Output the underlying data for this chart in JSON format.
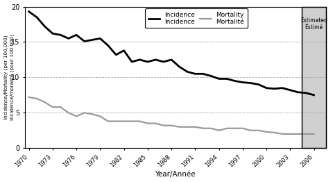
{
  "incidence_years": [
    1970,
    1971,
    1972,
    1973,
    1974,
    1975,
    1976,
    1977,
    1978,
    1979,
    1980,
    1981,
    1982,
    1983,
    1984,
    1985,
    1986,
    1987,
    1988,
    1989,
    1990,
    1991,
    1992,
    1993,
    1994,
    1995,
    1996,
    1997,
    1998,
    1999,
    2000,
    2001,
    2002,
    2003,
    2004,
    2005,
    2006
  ],
  "incidence_values": [
    19.3,
    18.5,
    17.2,
    16.2,
    16.0,
    15.5,
    16.0,
    15.1,
    15.3,
    15.5,
    14.5,
    13.2,
    13.8,
    12.2,
    12.5,
    12.2,
    12.5,
    12.2,
    12.5,
    11.5,
    10.8,
    10.5,
    10.5,
    10.2,
    9.8,
    9.8,
    9.5,
    9.3,
    9.2,
    9.0,
    8.5,
    8.4,
    8.5,
    8.2,
    7.9,
    7.8,
    7.5
  ],
  "mortality_years": [
    1970,
    1971,
    1972,
    1973,
    1974,
    1975,
    1976,
    1977,
    1978,
    1979,
    1980,
    1981,
    1982,
    1983,
    1984,
    1985,
    1986,
    1987,
    1988,
    1989,
    1990,
    1991,
    1992,
    1993,
    1994,
    1995,
    1996,
    1997,
    1998,
    1999,
    2000,
    2001,
    2002,
    2003,
    2004,
    2005,
    2006
  ],
  "mortality_values": [
    7.2,
    7.0,
    6.5,
    5.8,
    5.8,
    5.0,
    4.5,
    5.0,
    4.8,
    4.5,
    3.8,
    3.8,
    3.8,
    3.8,
    3.8,
    3.5,
    3.5,
    3.2,
    3.2,
    3.0,
    3.0,
    3.0,
    2.8,
    2.8,
    2.5,
    2.8,
    2.8,
    2.8,
    2.5,
    2.5,
    2.3,
    2.2,
    2.0,
    2.0,
    2.0,
    2.0,
    2.0
  ],
  "estimated_start": 2004.5,
  "x_min": 1969.5,
  "x_max": 2007.5,
  "x_ticks": [
    1970,
    1973,
    1976,
    1979,
    1982,
    1985,
    1988,
    1991,
    1994,
    1997,
    2000,
    2003,
    2006
  ],
  "ylim": [
    0,
    20
  ],
  "y_ticks": [
    0,
    5,
    10,
    15,
    20
  ],
  "incidence_color": "#000000",
  "mortality_color": "#999999",
  "estimated_bg": "#d0d0d0",
  "grid_color": "#aaaaaa",
  "ylabel_line1": "Incidence/Mortality (per 100,000)",
  "ylabel_line2": "Incidence/moralité (pour 100 000)",
  "xlabel": "Year/Année",
  "legend_incidence_en": "Incidence",
  "legend_incidence_fr": "Incidence",
  "legend_mortality_en": "Mortality",
  "legend_mortality_fr": "Mortalité",
  "estimated_label": "Estimated\nÉstimé"
}
